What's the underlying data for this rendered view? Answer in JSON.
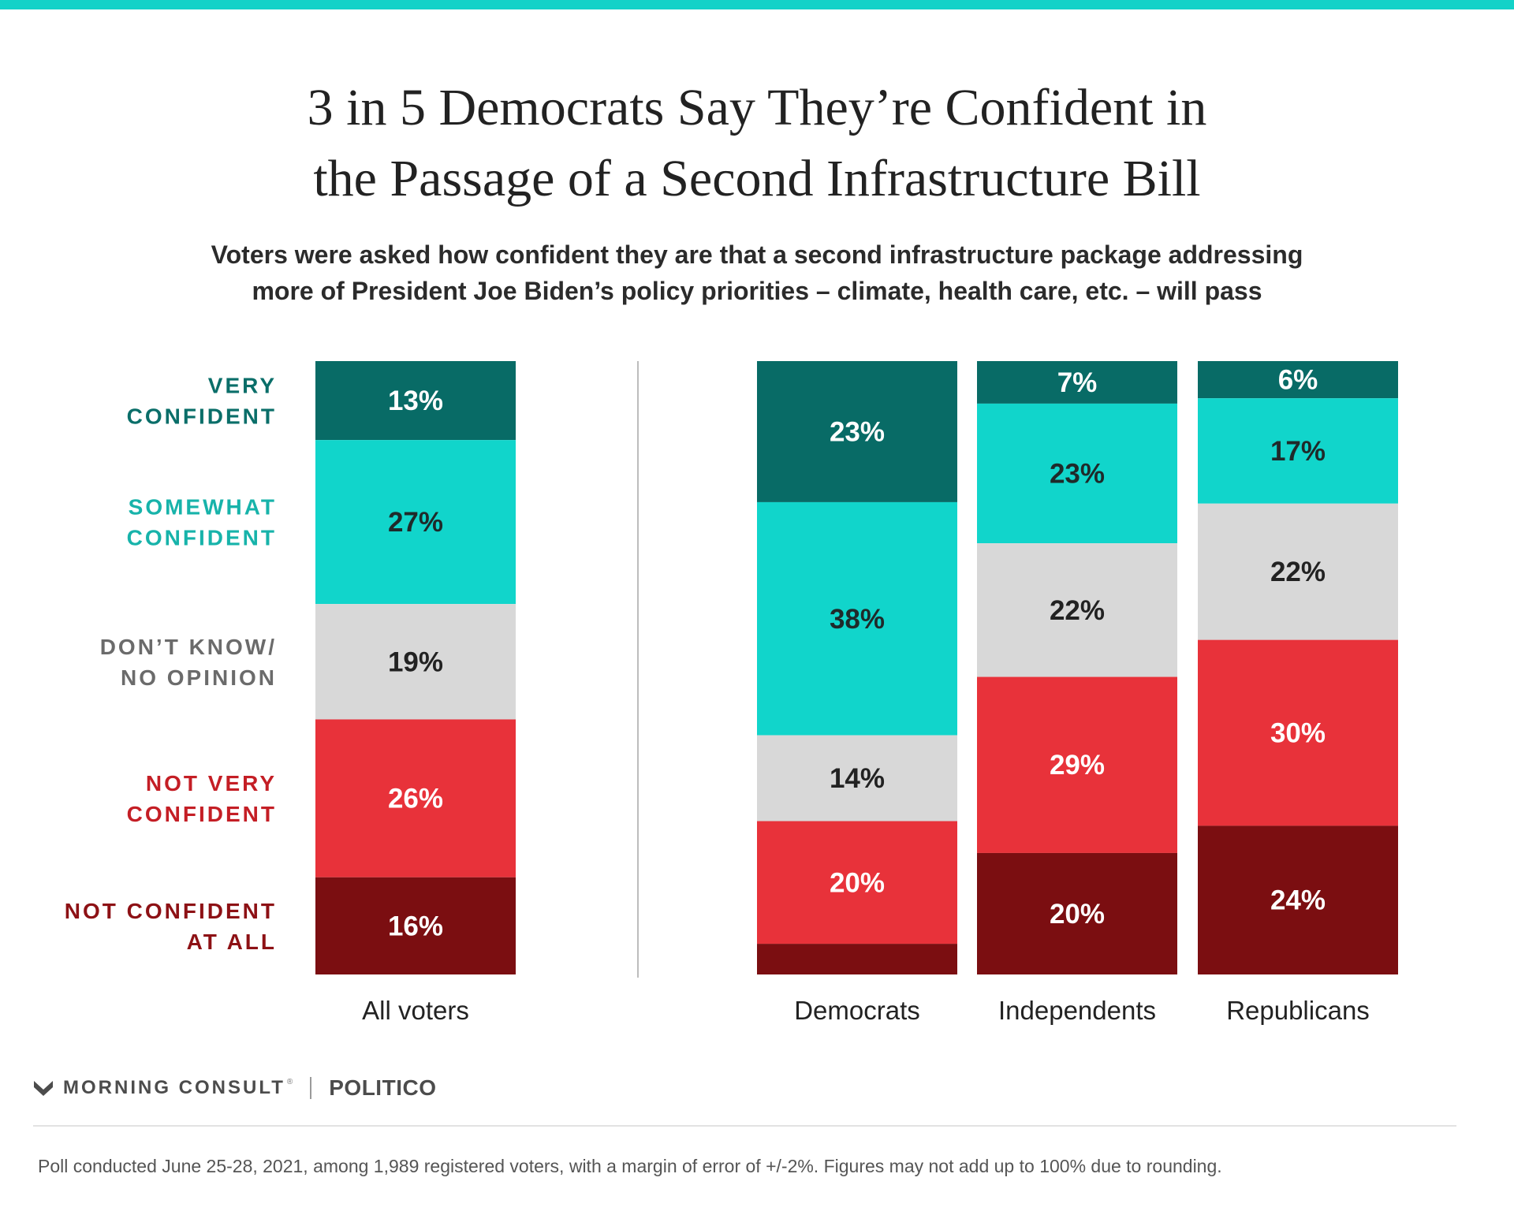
{
  "header": {
    "title_line1": "3 in 5 Democrats Say They’re Confident in",
    "title_line2": "the Passage of a Second Infrastructure Bill",
    "subtitle_line1": "Voters were asked how confident they are that a second infrastructure package addressing",
    "subtitle_line2": "more of President Joe Biden’s policy priorities – climate, health care, etc. – will pass"
  },
  "chart_data": {
    "type": "bar",
    "stacked": true,
    "categories": [
      "All voters",
      "Democrats",
      "Independents",
      "Republicans"
    ],
    "series": [
      {
        "name": "VERY CONFIDENT",
        "label_lines": [
          "VERY",
          "CONFIDENT"
        ],
        "color": "#086b66",
        "label_color": "#0a6e69",
        "text_color": "#ffffff",
        "values": [
          13,
          23,
          7,
          6
        ]
      },
      {
        "name": "SOMEWHAT CONFIDENT",
        "label_lines": [
          "SOMEWHAT",
          "CONFIDENT"
        ],
        "color": "#11d5cb",
        "label_color": "#17b3aa",
        "text_color": "#1f2a2a",
        "values": [
          27,
          38,
          23,
          17
        ]
      },
      {
        "name": "DON’T KNOW/ NO OPINION",
        "label_lines": [
          "DON’T KNOW/",
          "NO OPINION"
        ],
        "color": "#d8d8d8",
        "label_color": "#6b6b6b",
        "text_color": "#222222",
        "values": [
          19,
          14,
          22,
          22
        ]
      },
      {
        "name": "NOT VERY CONFIDENT",
        "label_lines": [
          "NOT VERY",
          "CONFIDENT"
        ],
        "color": "#e8323a",
        "label_color": "#c41e25",
        "text_color": "#ffffff",
        "values": [
          26,
          20,
          29,
          30
        ]
      },
      {
        "name": "NOT CONFIDENT AT ALL",
        "label_lines": [
          "NOT CONFIDENT",
          "AT ALL"
        ],
        "color": "#7b0e11",
        "label_color": "#8d1115",
        "text_color": "#ffffff",
        "values": [
          16,
          5,
          20,
          24
        ]
      }
    ],
    "data_labels": [
      [
        "13%",
        "27%",
        "19%",
        "26%",
        "16%"
      ],
      [
        "23%",
        "38%",
        "14%",
        "20%",
        ""
      ],
      [
        "7%",
        "23%",
        "22%",
        "29%",
        "20%"
      ],
      [
        "6%",
        "17%",
        "22%",
        "30%",
        "24%"
      ]
    ],
    "legend": "left"
  },
  "footer": {
    "brand_morning_consult": "MORNING CONSULT",
    "brand_reg": "®",
    "brand_politico": "POLITICO",
    "note": "Poll conducted June 25-28, 2021, among 1,989 registered voters, with a margin of error of +/-2%. Figures may not add up to 100% due to rounding."
  }
}
